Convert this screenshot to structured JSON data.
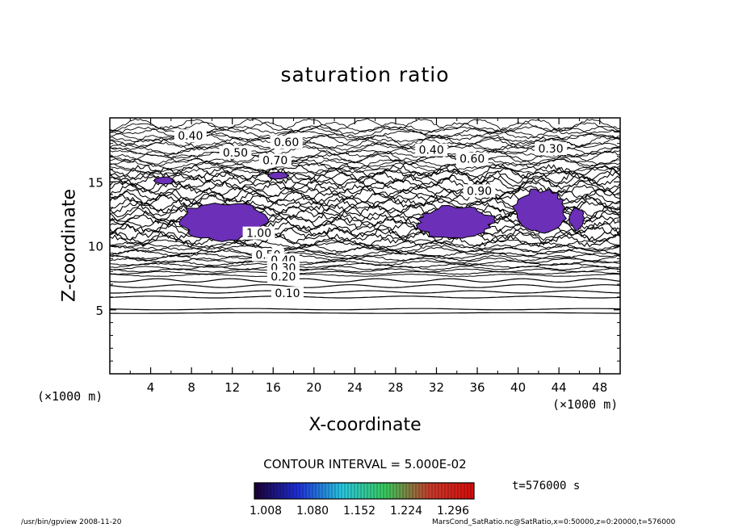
{
  "chart_data": {
    "type": "contour",
    "title": "saturation ratio",
    "xlabel": "X-coordinate",
    "ylabel": "Z-coordinate",
    "x_unit": "(×1000 m)",
    "y_unit": "(×1000 m)",
    "xlim": [
      0,
      50
    ],
    "ylim": [
      0,
      20
    ],
    "x_ticks": [
      4,
      8,
      12,
      16,
      20,
      24,
      28,
      32,
      36,
      40,
      44,
      48
    ],
    "y_ticks": [
      5,
      10,
      15
    ],
    "contour_interval_label": "CONTOUR INTERVAL = 5.000E-02",
    "time_label": "t=576000 s",
    "colorbar": {
      "tick_labels": [
        "1.008",
        "1.080",
        "1.152",
        "1.224",
        "1.296"
      ],
      "colors": [
        "#1a0033",
        "#1f2fd8",
        "#28c8e0",
        "#39c95a",
        "#c83a2a",
        "#d80a0a"
      ]
    },
    "contour_labels": [
      {
        "text": "0.40",
        "x": 7.9,
        "z": 18.6
      },
      {
        "text": "0.50",
        "x": 12.3,
        "z": 17.3
      },
      {
        "text": "0.60",
        "x": 17.3,
        "z": 18.1
      },
      {
        "text": "0.70",
        "x": 16.2,
        "z": 16.7
      },
      {
        "text": "0.40",
        "x": 31.5,
        "z": 17.5
      },
      {
        "text": "0.30",
        "x": 43.2,
        "z": 17.6
      },
      {
        "text": "0.60",
        "x": 35.5,
        "z": 16.8
      },
      {
        "text": "0.90",
        "x": 36.2,
        "z": 14.3
      },
      {
        "text": "1.00",
        "x": 14.6,
        "z": 11.0
      },
      {
        "text": "0.50",
        "x": 15.5,
        "z": 9.3
      },
      {
        "text": "0.40",
        "x": 17.0,
        "z": 8.9
      },
      {
        "text": "0.30",
        "x": 17.0,
        "z": 8.3
      },
      {
        "text": "0.20",
        "x": 17.0,
        "z": 7.6
      },
      {
        "text": "0.10",
        "x": 17.4,
        "z": 6.3
      }
    ],
    "supersaturated_regions": [
      {
        "x": [
          6.5,
          15.5
        ],
        "z": [
          10.3,
          13.5
        ]
      },
      {
        "x": [
          30.0,
          37.8
        ],
        "z": [
          10.5,
          13.2
        ]
      },
      {
        "x": [
          39.5,
          44.8
        ],
        "z": [
          11.0,
          14.5
        ]
      },
      {
        "x": [
          45.0,
          46.5
        ],
        "z": [
          11.2,
          13.0
        ]
      },
      {
        "x": [
          4.3,
          6.3
        ],
        "z": [
          14.8,
          15.4
        ]
      },
      {
        "x": [
          15.5,
          17.5
        ],
        "z": [
          15.2,
          15.8
        ]
      }
    ]
  },
  "footer": {
    "left": "/usr/bin/gpview   2008-11-20",
    "right": "MarsCond_SatRatio.nc@SatRatio,x=0:50000,z=0:20000,t=576000"
  }
}
